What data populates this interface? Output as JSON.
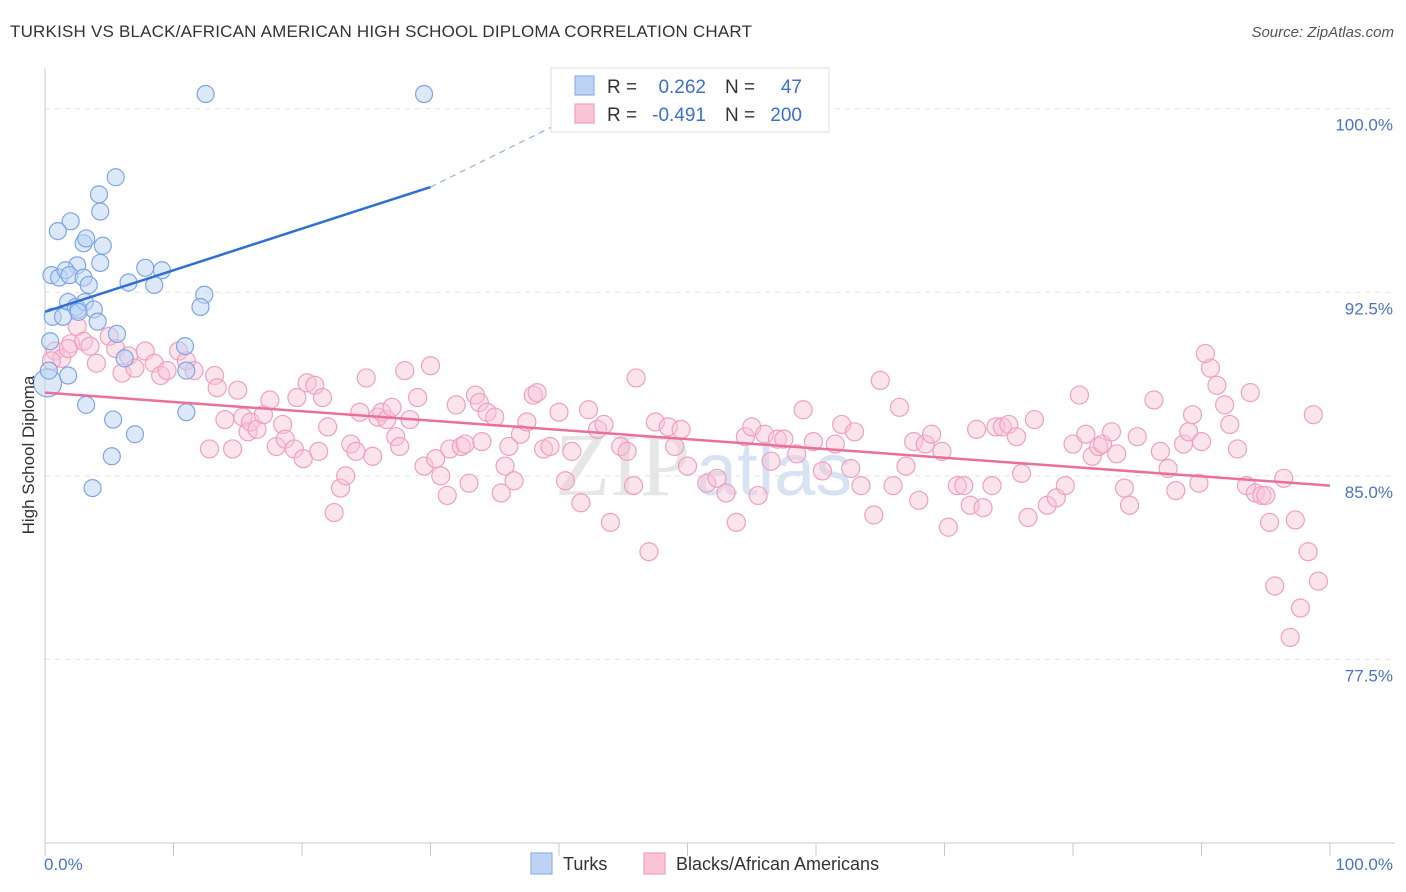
{
  "title": "TURKISH VS BLACK/AFRICAN AMERICAN HIGH SCHOOL DIPLOMA CORRELATION CHART",
  "source": "Source: ZipAtlas.com",
  "watermark": "ZIPatlas",
  "chart_data": {
    "type": "scatter",
    "ylabel": "High School Diploma",
    "xlim": [
      0,
      100
    ],
    "ylim": [
      70.0,
      101.5
    ],
    "y_ticks": [
      {
        "value": 100.0,
        "label": "100.0%"
      },
      {
        "value": 92.5,
        "label": "92.5%"
      },
      {
        "value": 85.0,
        "label": "85.0%"
      },
      {
        "value": 77.5,
        "label": "77.5%"
      }
    ],
    "x_tick_labels": [
      "0.0%",
      "100.0%"
    ],
    "grid": true,
    "legend_position": "top-center",
    "stats": [
      {
        "r_label": "R =",
        "r": "0.262",
        "n_label": "N =",
        "n": "47"
      },
      {
        "r_label": "R =",
        "r": "-0.491",
        "n_label": "N =",
        "n": "200"
      }
    ],
    "series": [
      {
        "name": "Turks",
        "color": "#6f9fe6",
        "trend": {
          "x": [
            0,
            30
          ],
          "y": [
            91.7,
            96.8
          ],
          "dashed_to": [
            40,
            99.4
          ]
        },
        "points": [
          [
            12.5,
            100.6
          ],
          [
            29.5,
            100.6
          ],
          [
            5.5,
            97.2
          ],
          [
            4.2,
            96.5
          ],
          [
            4.3,
            95.8
          ],
          [
            2,
            95.4
          ],
          [
            1,
            95
          ],
          [
            3,
            94.5
          ],
          [
            3.2,
            94.7
          ],
          [
            4.5,
            94.4
          ],
          [
            2.5,
            93.6
          ],
          [
            4.3,
            93.7
          ],
          [
            7.8,
            93.5
          ],
          [
            9.1,
            93.4
          ],
          [
            0.5,
            93.2
          ],
          [
            1.1,
            93.1
          ],
          [
            1.6,
            93.4
          ],
          [
            1.9,
            93.2
          ],
          [
            3,
            93.1
          ],
          [
            3.4,
            92.8
          ],
          [
            6.5,
            92.9
          ],
          [
            8.5,
            92.8
          ],
          [
            12.4,
            92.4
          ],
          [
            1.8,
            92.1
          ],
          [
            2.4,
            91.9
          ],
          [
            2.6,
            91.8
          ],
          [
            3.1,
            92.1
          ],
          [
            3.8,
            91.8
          ],
          [
            12.1,
            91.9
          ],
          [
            0.6,
            91.5
          ],
          [
            1.4,
            91.5
          ],
          [
            4.1,
            91.3
          ],
          [
            2.6,
            91.7
          ],
          [
            5.6,
            90.8
          ],
          [
            0.4,
            90.5
          ],
          [
            6.2,
            89.8
          ],
          [
            0.2,
            88.8
          ],
          [
            1.8,
            89.1
          ],
          [
            11,
            89.3
          ],
          [
            3.2,
            87.9
          ],
          [
            11,
            87.6
          ],
          [
            5.3,
            87.3
          ],
          [
            7,
            86.7
          ],
          [
            5.2,
            85.8
          ],
          [
            3.7,
            84.5
          ],
          [
            0.3,
            89.3
          ],
          [
            10.9,
            90.3
          ]
        ],
        "sizes": {
          "5": 0
        }
      },
      {
        "name": "Blacks/African Americans",
        "color": "#f3a3bf",
        "trend": {
          "x": [
            0,
            100
          ],
          "y": [
            88.4,
            84.6
          ]
        },
        "points": [
          [
            0.8,
            90.1
          ],
          [
            1.3,
            89.8
          ],
          [
            2,
            90.4
          ],
          [
            2.5,
            91.1
          ],
          [
            3,
            90.5
          ],
          [
            3.5,
            90.3
          ],
          [
            4,
            89.6
          ],
          [
            5,
            90.7
          ],
          [
            5.5,
            90.2
          ],
          [
            6,
            89.2
          ],
          [
            6.5,
            89.9
          ],
          [
            7,
            89.4
          ],
          [
            7.8,
            90.1
          ],
          [
            8.5,
            89.6
          ],
          [
            9,
            89.1
          ],
          [
            9.5,
            89.3
          ],
          [
            10.4,
            90.1
          ],
          [
            11,
            89.7
          ],
          [
            11.6,
            89.3
          ],
          [
            1.8,
            90.2
          ],
          [
            12.8,
            86.1
          ],
          [
            13.2,
            89.1
          ],
          [
            13.4,
            88.6
          ],
          [
            14,
            87.3
          ],
          [
            14.6,
            86.1
          ],
          [
            15,
            88.5
          ],
          [
            15.4,
            87.4
          ],
          [
            15.8,
            86.8
          ],
          [
            16,
            87.2
          ],
          [
            16.5,
            86.9
          ],
          [
            17,
            87.5
          ],
          [
            17.5,
            88.1
          ],
          [
            18,
            86.2
          ],
          [
            18.5,
            87.1
          ],
          [
            18.7,
            86.5
          ],
          [
            19.4,
            86.1
          ],
          [
            19.6,
            88.2
          ],
          [
            20.1,
            85.7
          ],
          [
            20.4,
            88.8
          ],
          [
            21,
            88.7
          ],
          [
            21.3,
            86
          ],
          [
            21.6,
            88.2
          ],
          [
            22,
            87
          ],
          [
            22.5,
            83.5
          ],
          [
            23,
            84.5
          ],
          [
            23.4,
            85
          ],
          [
            23.8,
            86.3
          ],
          [
            24.2,
            86
          ],
          [
            24.5,
            87.6
          ],
          [
            25,
            89
          ],
          [
            25.5,
            85.8
          ],
          [
            25.9,
            87.4
          ],
          [
            26.2,
            87.6
          ],
          [
            26.6,
            87.3
          ],
          [
            27,
            87.8
          ],
          [
            27.3,
            86.6
          ],
          [
            27.6,
            86.2
          ],
          [
            28,
            89.3
          ],
          [
            28.4,
            87.3
          ],
          [
            29,
            88.2
          ],
          [
            29.5,
            85.4
          ],
          [
            30,
            89.5
          ],
          [
            30.4,
            85.7
          ],
          [
            30.8,
            85
          ],
          [
            31.3,
            84.2
          ],
          [
            31.5,
            86.1
          ],
          [
            32,
            87.9
          ],
          [
            32.4,
            86.2
          ],
          [
            32.7,
            86.3
          ],
          [
            33,
            84.7
          ],
          [
            33.5,
            88.3
          ],
          [
            33.8,
            88
          ],
          [
            34,
            86.4
          ],
          [
            34.4,
            87.6
          ],
          [
            35,
            87.4
          ],
          [
            35.5,
            84.3
          ],
          [
            35.8,
            85.4
          ],
          [
            36.1,
            86.2
          ],
          [
            36.5,
            84.8
          ],
          [
            37,
            86.7
          ],
          [
            37.5,
            87.2
          ],
          [
            38,
            88.3
          ],
          [
            38.3,
            88.4
          ],
          [
            38.8,
            86.1
          ],
          [
            39.3,
            86.2
          ],
          [
            40,
            87.6
          ],
          [
            40.5,
            84.8
          ],
          [
            41,
            86
          ],
          [
            41.7,
            83.9
          ],
          [
            42.3,
            87.7
          ],
          [
            43,
            86.9
          ],
          [
            43.5,
            87.1
          ],
          [
            44,
            83.1
          ],
          [
            44.8,
            86.2
          ],
          [
            45.3,
            86
          ],
          [
            45.8,
            84.6
          ],
          [
            46,
            89
          ],
          [
            47,
            81.9
          ],
          [
            47.5,
            87.2
          ],
          [
            48.5,
            87
          ],
          [
            49,
            86.2
          ],
          [
            49.5,
            86.9
          ],
          [
            50,
            85.4
          ],
          [
            51.5,
            84.7
          ],
          [
            52.3,
            84.9
          ],
          [
            53,
            84.3
          ],
          [
            53.8,
            83.1
          ],
          [
            54.5,
            86.6
          ],
          [
            55,
            87
          ],
          [
            55.5,
            84.2
          ],
          [
            56,
            86.7
          ],
          [
            56.5,
            85.6
          ],
          [
            57,
            86.5
          ],
          [
            57.5,
            86.5
          ],
          [
            58.5,
            85.9
          ],
          [
            59,
            87.7
          ],
          [
            59.8,
            86.4
          ],
          [
            60.5,
            85.2
          ],
          [
            61.5,
            86.3
          ],
          [
            62,
            87.1
          ],
          [
            62.7,
            85.3
          ],
          [
            63,
            86.8
          ],
          [
            63.5,
            84.6
          ],
          [
            64.5,
            83.4
          ],
          [
            65,
            88.9
          ],
          [
            66,
            84.6
          ],
          [
            66.5,
            87.8
          ],
          [
            67,
            85.4
          ],
          [
            67.6,
            86.4
          ],
          [
            68,
            84
          ],
          [
            68.5,
            86.3
          ],
          [
            69,
            86.7
          ],
          [
            69.8,
            86
          ],
          [
            70.3,
            82.9
          ],
          [
            71,
            84.6
          ],
          [
            71.5,
            84.6
          ],
          [
            72,
            83.8
          ],
          [
            72.5,
            86.9
          ],
          [
            73,
            83.7
          ],
          [
            73.7,
            84.6
          ],
          [
            74,
            87
          ],
          [
            74.5,
            87
          ],
          [
            75,
            87.1
          ],
          [
            75.6,
            86.6
          ],
          [
            76,
            85.1
          ],
          [
            76.5,
            83.3
          ],
          [
            77,
            87.3
          ],
          [
            78,
            83.8
          ],
          [
            78.7,
            84.1
          ],
          [
            79.4,
            84.6
          ],
          [
            80,
            86.3
          ],
          [
            80.5,
            88.3
          ],
          [
            81,
            86.7
          ],
          [
            81.5,
            85.8
          ],
          [
            82,
            86.2
          ],
          [
            82.3,
            86.3
          ],
          [
            83,
            86.8
          ],
          [
            83.4,
            85.9
          ],
          [
            84,
            84.5
          ],
          [
            84.4,
            83.8
          ],
          [
            85,
            86.6
          ],
          [
            86.3,
            88.1
          ],
          [
            86.8,
            86
          ],
          [
            87.4,
            85.3
          ],
          [
            88,
            84.4
          ],
          [
            88.6,
            86.3
          ],
          [
            89,
            86.8
          ],
          [
            89.3,
            87.5
          ],
          [
            89.8,
            84.7
          ],
          [
            90,
            86.4
          ],
          [
            90.7,
            89.4
          ],
          [
            91.2,
            88.7
          ],
          [
            91.8,
            87.9
          ],
          [
            92.2,
            87.1
          ],
          [
            92.8,
            86.1
          ],
          [
            93.5,
            84.6
          ],
          [
            93.8,
            88.4
          ],
          [
            94.2,
            84.3
          ],
          [
            94.7,
            84.2
          ],
          [
            95,
            84.2
          ],
          [
            95.3,
            83.1
          ],
          [
            95.7,
            80.5
          ],
          [
            96.4,
            84.9
          ],
          [
            96.9,
            78.4
          ],
          [
            97.3,
            83.2
          ],
          [
            97.7,
            79.6
          ],
          [
            98.3,
            81.9
          ],
          [
            98.7,
            87.5
          ],
          [
            99.1,
            80.7
          ],
          [
            0.5,
            89.7
          ],
          [
            90.3,
            90
          ]
        ]
      }
    ]
  },
  "legend": {
    "items": [
      "Turks",
      "Blacks/African Americans"
    ]
  }
}
